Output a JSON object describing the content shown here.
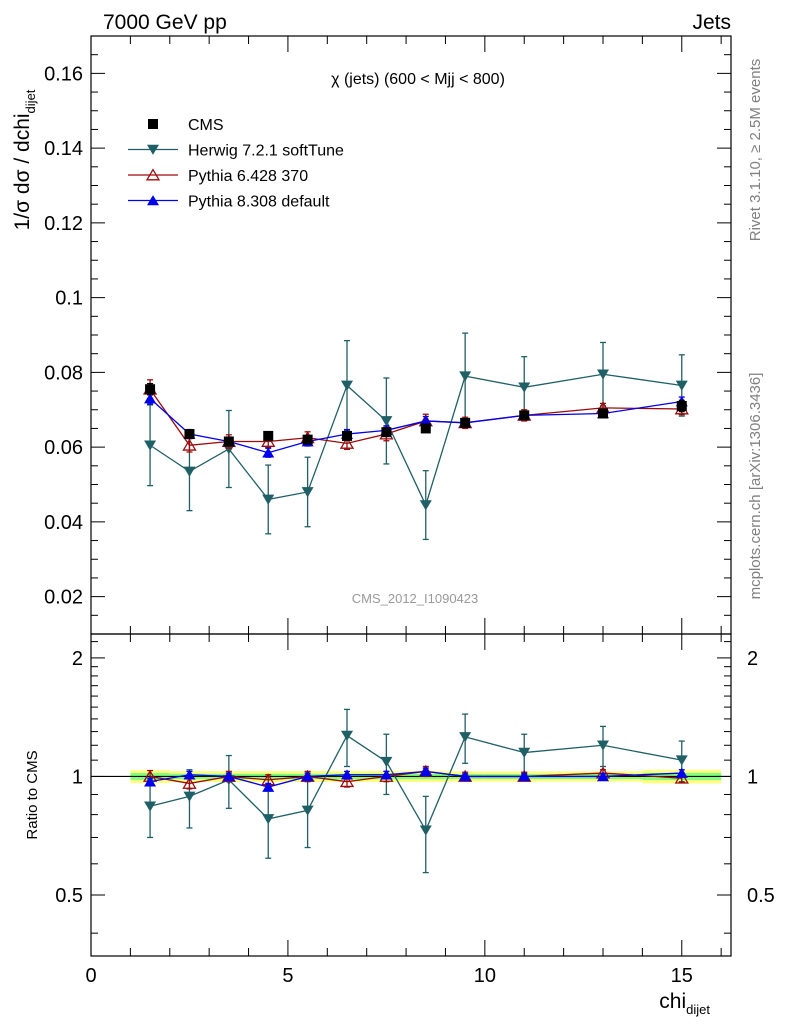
{
  "header": {
    "left": "7000 GeV pp",
    "right": "Jets"
  },
  "side_labels": {
    "rivet": "Rivet 3.1.10, ≥ 2.5M events",
    "mcplots": "mcplots.cern.ch [arXiv:1306.3436]"
  },
  "colors": {
    "cms": "#000000",
    "herwig": "#1f5f66",
    "pythia6": "#9b0b0b",
    "pythia8": "#0000ee",
    "band_inner": "#7fff7f",
    "band_outer": "#ffff80"
  },
  "chart_data": [
    {
      "type": "scatter",
      "title": "χ (jets) (600 < Mjj <  800)",
      "watermark": "CMS_2012_I1090423",
      "ylabel": "1/σ dσ / dchi",
      "ylabel_sub": "dijet",
      "ylim": [
        0.01,
        0.17
      ],
      "xlim": [
        0,
        16.25
      ],
      "yticks": [
        0.02,
        0.04,
        0.06,
        0.08,
        0.1,
        0.12,
        0.14,
        0.16
      ],
      "ytick_labels": [
        "0.02",
        "0.04",
        "0.06",
        "0.08",
        "0.1",
        "0.12",
        "0.14",
        "0.16"
      ],
      "legend_position": "top-left",
      "series": [
        {
          "name": "CMS",
          "marker": "square",
          "x": [
            1.5,
            2.5,
            3.5,
            4.5,
            5.5,
            6.5,
            7.5,
            8.5,
            9.5,
            11,
            13,
            15
          ],
          "y": [
            0.0755,
            0.0635,
            0.0615,
            0.063,
            0.062,
            0.063,
            0.064,
            0.065,
            0.0665,
            0.0685,
            0.069,
            0.071
          ],
          "err": [
            0.0015,
            0.001,
            0.001,
            0.001,
            0.001,
            0.001,
            0.001,
            0.001,
            0.001,
            0.001,
            0.001,
            0.0015
          ]
        },
        {
          "name": "Herwig 7.2.1 softTune",
          "marker": "triangle-down",
          "x": [
            1.5,
            2.5,
            3.5,
            4.5,
            5.5,
            6.5,
            7.5,
            8.5,
            9.5,
            11,
            13,
            15
          ],
          "y": [
            0.0605,
            0.0535,
            0.0595,
            0.046,
            0.048,
            0.0765,
            0.067,
            0.0445,
            0.079,
            0.076,
            0.0795,
            0.0765
          ],
          "err": [
            0.0108,
            0.0105,
            0.0103,
            0.0092,
            0.0093,
            0.012,
            0.0115,
            0.0092,
            0.0115,
            0.0082,
            0.0085,
            0.0082
          ]
        },
        {
          "name": "Pythia 6.428 370",
          "marker": "triangle-open",
          "x": [
            1.5,
            2.5,
            3.5,
            4.5,
            5.5,
            6.5,
            7.5,
            8.5,
            9.5,
            11,
            13,
            15
          ],
          "y": [
            0.0755,
            0.0605,
            0.0615,
            0.0615,
            0.0625,
            0.061,
            0.0635,
            0.067,
            0.0665,
            0.0685,
            0.0705,
            0.0702
          ],
          "err": [
            0.0025,
            0.0018,
            0.0018,
            0.0016,
            0.0016,
            0.0016,
            0.0018,
            0.0018,
            0.0015,
            0.0015,
            0.0012,
            0.0015
          ]
        },
        {
          "name": "Pythia 8.308 default",
          "marker": "triangle",
          "x": [
            1.5,
            2.5,
            3.5,
            4.5,
            5.5,
            6.5,
            7.5,
            8.5,
            9.5,
            11,
            13,
            15
          ],
          "y": [
            0.073,
            0.0635,
            0.0615,
            0.0585,
            0.0615,
            0.0635,
            0.0645,
            0.067,
            0.0665,
            0.0685,
            0.069,
            0.0722
          ],
          "err": [
            0.0015,
            0.0012,
            0.0012,
            0.0012,
            0.0012,
            0.0012,
            0.0012,
            0.0012,
            0.001,
            0.001,
            0.001,
            0.0012
          ]
        }
      ]
    },
    {
      "type": "scatter",
      "ylabel": "Ratio to CMS",
      "xlabel": "chi",
      "xlabel_sub": "dijet",
      "ylim": [
        0.35,
        2.3
      ],
      "xlim": [
        0,
        16.25
      ],
      "xticks": [
        0,
        5,
        10,
        15
      ],
      "xtick_labels": [
        "0",
        "5",
        "10",
        "15"
      ],
      "yticks": [
        0.5,
        1,
        2
      ],
      "ytick_labels": [
        "0.5",
        "1",
        "2"
      ],
      "band_edges": [
        1,
        2,
        3,
        4,
        5,
        6,
        7,
        8,
        9,
        10,
        12,
        14,
        16
      ],
      "band_inner": [
        0.02,
        0.016,
        0.016,
        0.016,
        0.016,
        0.016,
        0.016,
        0.016,
        0.015,
        0.015,
        0.015,
        0.021
      ],
      "band_outer": [
        0.038,
        0.032,
        0.032,
        0.032,
        0.032,
        0.032,
        0.032,
        0.032,
        0.03,
        0.03,
        0.03,
        0.04
      ],
      "series": [
        {
          "name": "Herwig 7.2.1 softTune",
          "marker": "triangle-down",
          "x": [
            1.5,
            2.5,
            3.5,
            4.5,
            5.5,
            6.5,
            7.5,
            8.5,
            9.5,
            11,
            13,
            15
          ],
          "y": [
            0.84,
            0.89,
            0.98,
            0.78,
            0.82,
            1.27,
            1.09,
            0.73,
            1.26,
            1.15,
            1.2,
            1.1
          ],
          "err": [
            0.14,
            0.15,
            0.15,
            0.16,
            0.16,
            0.21,
            0.19,
            0.16,
            0.18,
            0.13,
            0.14,
            0.13
          ]
        },
        {
          "name": "Pythia 6.428 370",
          "marker": "triangle-open",
          "x": [
            1.5,
            2.5,
            3.5,
            4.5,
            5.5,
            6.5,
            7.5,
            8.5,
            9.5,
            11,
            13,
            15
          ],
          "y": [
            1.0,
            0.96,
            1.0,
            0.98,
            1.0,
            0.97,
            1.0,
            1.03,
            1.0,
            1.0,
            1.02,
            0.99
          ],
          "err": [
            0.035,
            0.03,
            0.03,
            0.03,
            0.03,
            0.03,
            0.03,
            0.03,
            0.025,
            0.025,
            0.02,
            0.025
          ]
        },
        {
          "name": "Pythia 8.308 default",
          "marker": "triangle",
          "x": [
            1.5,
            2.5,
            3.5,
            4.5,
            5.5,
            6.5,
            7.5,
            8.5,
            9.5,
            11,
            13,
            15
          ],
          "y": [
            0.97,
            1.01,
            1.0,
            0.94,
            1.0,
            1.01,
            1.01,
            1.03,
            1.0,
            1.0,
            1.0,
            1.02
          ],
          "err": [
            0.02,
            0.02,
            0.02,
            0.02,
            0.02,
            0.02,
            0.02,
            0.02,
            0.015,
            0.015,
            0.015,
            0.02
          ]
        }
      ]
    }
  ]
}
